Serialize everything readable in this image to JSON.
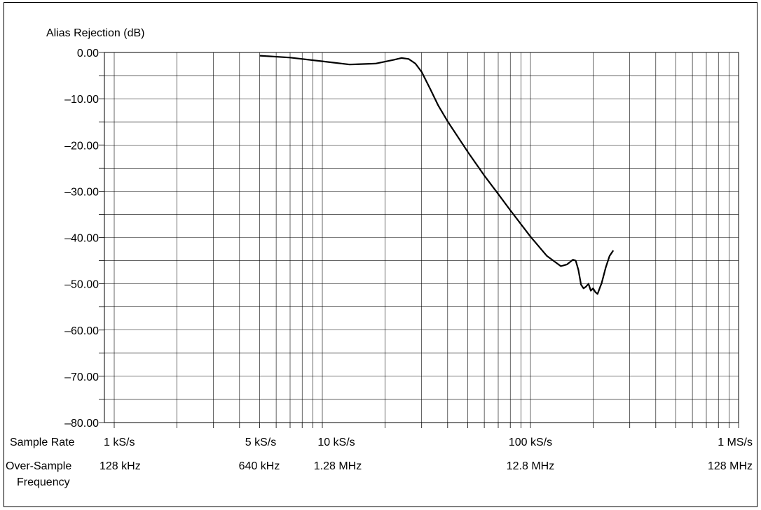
{
  "chart_data": {
    "type": "line",
    "title": "",
    "ylabel": "Alias Rejection (dB)",
    "ylim": [
      -80,
      0
    ],
    "yticks": [
      0,
      -10,
      -20,
      -30,
      -40,
      -50,
      -60,
      -70,
      -80
    ],
    "ytick_labels": [
      "0.00",
      "–10.00",
      "–20.00",
      "–30.00",
      "–40.00",
      "–50.00",
      "–60.00",
      "–70.00",
      "–80.00"
    ],
    "x_scale": "log",
    "xlim": [
      1000,
      1000000
    ],
    "grid": true,
    "x_rows": [
      {
        "label": "Sample Rate",
        "ticks": [
          {
            "x": 1000,
            "label": "1 kS/s"
          },
          {
            "x": 5000,
            "label": "5 kS/s"
          },
          {
            "x": 10000,
            "label": "10 kS/s"
          },
          {
            "x": 100000,
            "label": "100 kS/s"
          },
          {
            "x": 1000000,
            "label": "1 MS/s"
          }
        ]
      },
      {
        "label_lines": [
          "Over-Sample",
          "Frequency"
        ],
        "ticks": [
          {
            "x": 1000,
            "label": "128 kHz"
          },
          {
            "x": 5000,
            "label": "640 kHz"
          },
          {
            "x": 10000,
            "label": "1.28 MHz"
          },
          {
            "x": 100000,
            "label": "12.8 MHz"
          },
          {
            "x": 1000000,
            "label": "128 MHz"
          }
        ]
      }
    ],
    "series": [
      {
        "x": [
          5000,
          7000,
          10000,
          13500,
          18000,
          22000,
          24000,
          26000,
          28000,
          30000,
          33000,
          36000,
          40000,
          50000,
          60000,
          70000,
          80000,
          100000,
          120000,
          140000,
          150000,
          160000,
          165000,
          170000,
          175000,
          180000,
          185000,
          190000,
          195000,
          200000,
          205000,
          210000,
          215000,
          220000,
          230000,
          240000,
          250000
        ],
        "values": [
          -0.7,
          -1.1,
          -1.9,
          -2.6,
          -2.4,
          -1.6,
          -1.2,
          -1.4,
          -2.4,
          -4.2,
          -7.9,
          -11.4,
          -14.9,
          -21.5,
          -26.6,
          -30.6,
          -34.1,
          -39.8,
          -44.0,
          -46.2,
          -45.8,
          -44.8,
          -45.0,
          -47.0,
          -50.2,
          -51.0,
          -50.6,
          -50.0,
          -51.5,
          -51.0,
          -51.8,
          -52.2,
          -51.0,
          -49.8,
          -46.5,
          -44.0,
          -42.8
        ]
      }
    ]
  }
}
